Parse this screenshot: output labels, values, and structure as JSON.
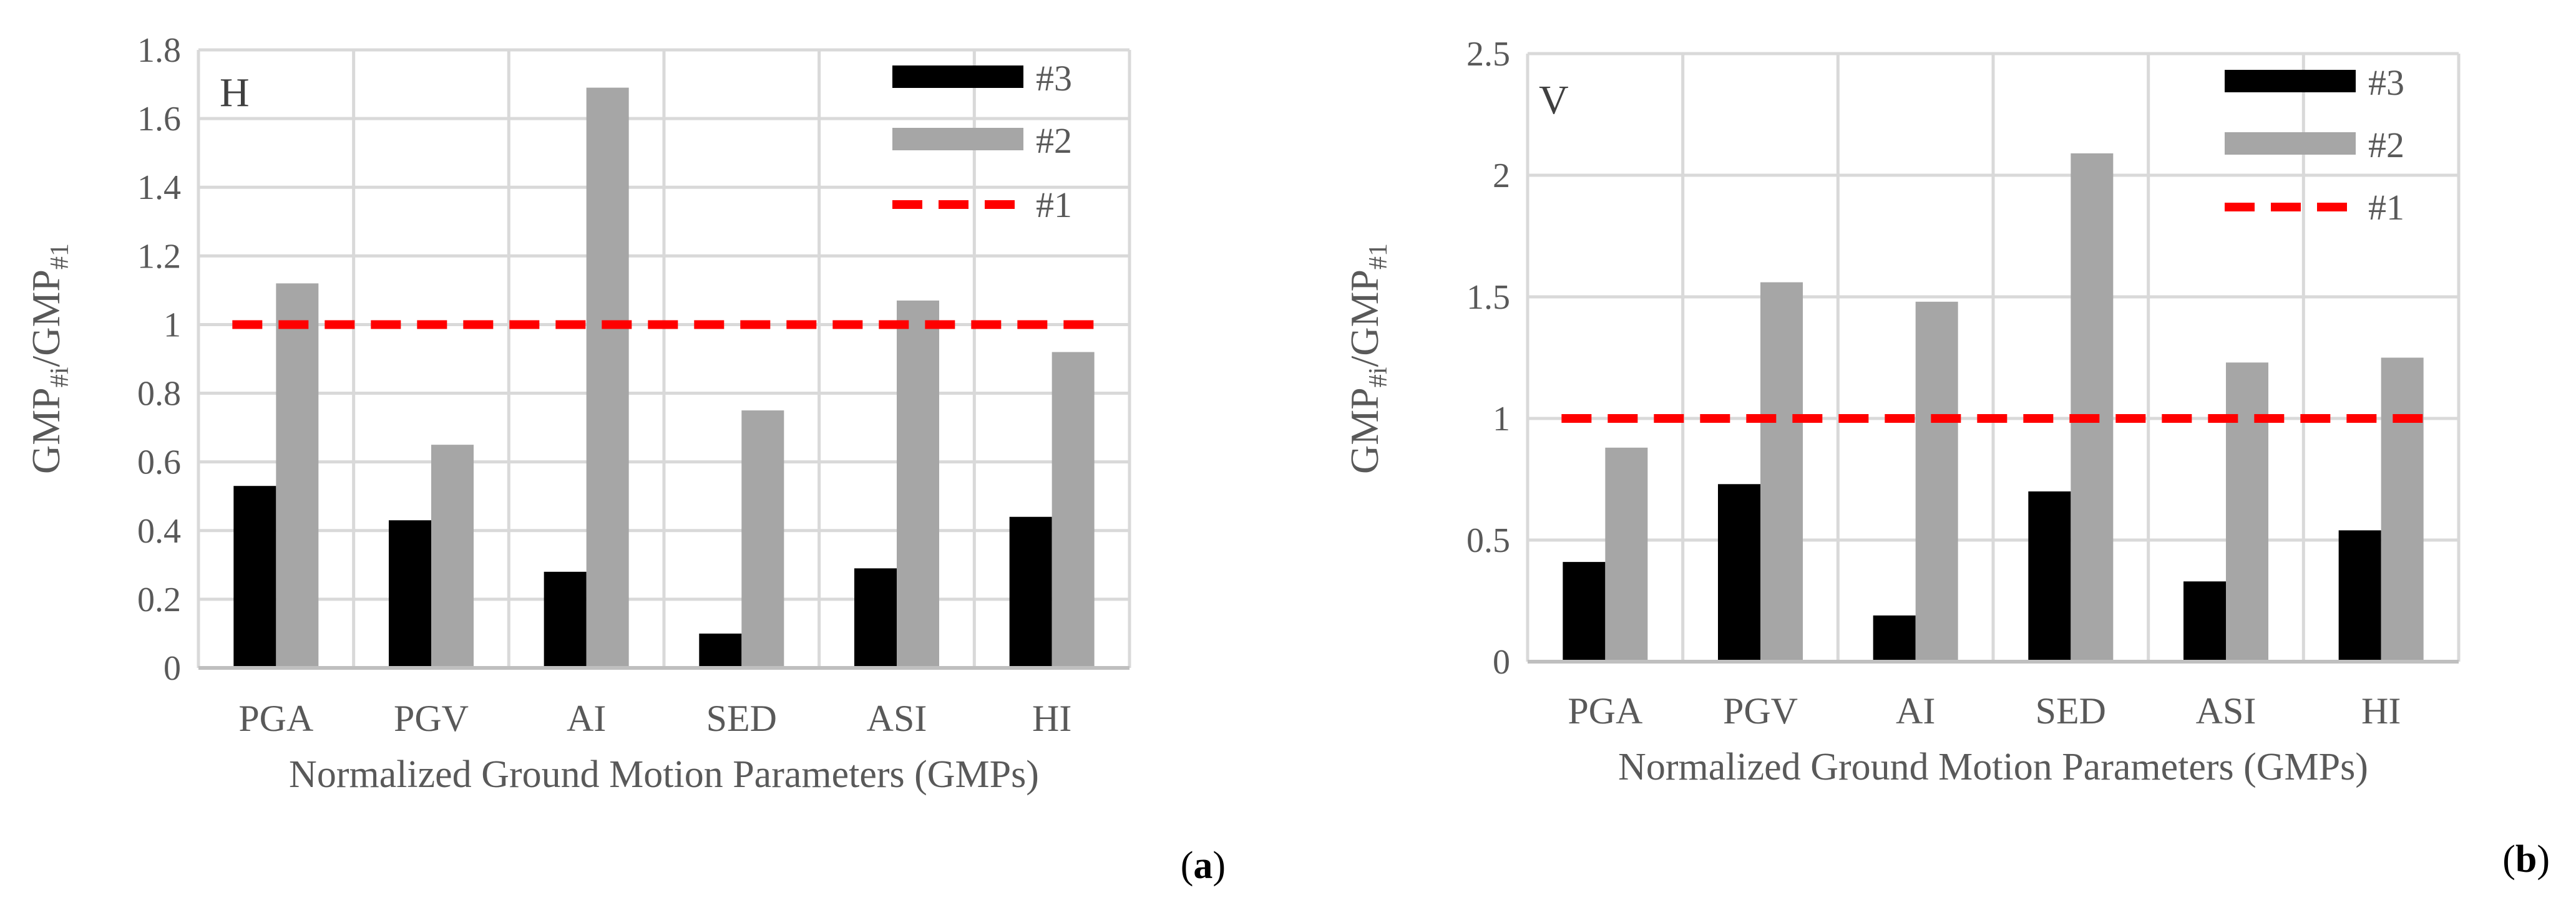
{
  "chart_data": [
    {
      "type": "bar",
      "panel_tag": "H",
      "panel_label": {
        "open": "(",
        "letter": "a",
        "close": ")"
      },
      "xlabel": "Normalized Ground Motion Parameters (GMPs)",
      "ylabel": {
        "base1": "GMP",
        "sub1": "#i",
        "sep": "/GMP",
        "sub2": "#1"
      },
      "categories": [
        "PGA",
        "PGV",
        "AI",
        "SED",
        "ASI",
        "HI"
      ],
      "ylim": [
        0,
        1.8
      ],
      "yticks": [
        0,
        0.2,
        0.4,
        0.6,
        0.8,
        1,
        1.2,
        1.4,
        1.6,
        1.8
      ],
      "ytick_labels": [
        "0",
        "0.2",
        "0.4",
        "0.6",
        "0.8",
        "1",
        "1.2",
        "1.4",
        "1.6",
        "1.8"
      ],
      "grid": true,
      "series": [
        {
          "name": "#3",
          "kind": "bar",
          "color": "#000000",
          "values": [
            0.53,
            0.43,
            0.28,
            0.1,
            0.29,
            0.44
          ]
        },
        {
          "name": "#2",
          "kind": "bar",
          "color": "#a6a6a6",
          "values": [
            1.12,
            0.65,
            1.69,
            0.75,
            1.07,
            0.92
          ]
        },
        {
          "name": "#1",
          "kind": "dashed-line",
          "color": "#ff0000",
          "values": [
            1,
            1,
            1,
            1,
            1,
            1
          ]
        }
      ],
      "legend": {
        "position": "top-right",
        "entries": [
          "#3",
          "#2",
          "#1"
        ]
      }
    },
    {
      "type": "bar",
      "panel_tag": "V",
      "panel_label": {
        "open": "(",
        "letter": "b",
        "close": ")"
      },
      "xlabel": "Normalized Ground Motion Parameters (GMPs)",
      "ylabel": {
        "base1": "GMP",
        "sub1": "#i",
        "sep": "/GMP",
        "sub2": "#1"
      },
      "categories": [
        "PGA",
        "PGV",
        "AI",
        "SED",
        "ASI",
        "HI"
      ],
      "ylim": [
        0,
        2.5
      ],
      "yticks": [
        0,
        0.5,
        1,
        1.5,
        2,
        2.5
      ],
      "ytick_labels": [
        "0",
        "0.5",
        "1",
        "1.5",
        "2",
        "2.5"
      ],
      "grid": true,
      "series": [
        {
          "name": "#3",
          "kind": "bar",
          "color": "#000000",
          "values": [
            0.41,
            0.73,
            0.19,
            0.7,
            0.33,
            0.54
          ]
        },
        {
          "name": "#2",
          "kind": "bar",
          "color": "#a6a6a6",
          "values": [
            0.88,
            1.56,
            1.48,
            2.09,
            1.23,
            1.25
          ]
        },
        {
          "name": "#1",
          "kind": "dashed-line",
          "color": "#ff0000",
          "values": [
            1,
            1,
            1,
            1,
            1,
            1
          ]
        }
      ],
      "legend": {
        "position": "top-right",
        "entries": [
          "#3",
          "#2",
          "#1"
        ]
      }
    }
  ]
}
